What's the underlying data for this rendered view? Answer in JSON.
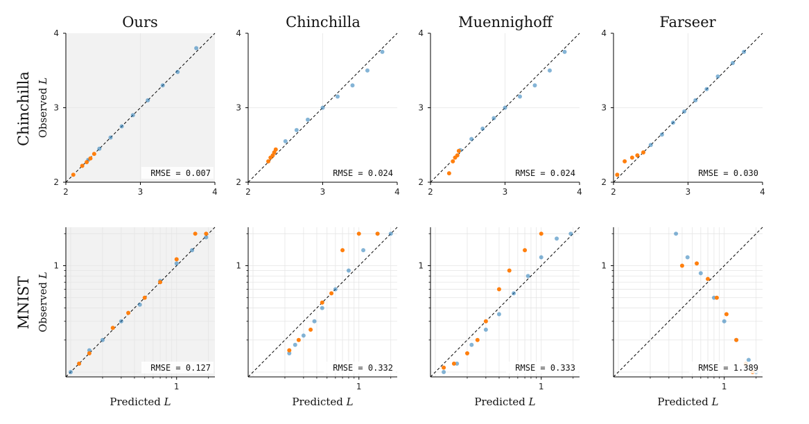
{
  "figure": {
    "column_titles": [
      "Ours",
      "Chinchilla",
      "Muennighoff",
      "Farseer"
    ],
    "row_labels": [
      "Chinchilla",
      "MNIST"
    ],
    "xlabel_prefix": "Predicted ",
    "ylabel_prefix": "Observed ",
    "axis_var": "L"
  },
  "colors": {
    "fit_points": "#1f77b4",
    "holdout_points": "#ff7f0e",
    "reference_line": "#000000",
    "highlight_background": "#f2f2f2",
    "grid": "#e5e5e5"
  },
  "chart_data": [
    {
      "type": "scatter",
      "row": "Chinchilla",
      "model": "Ours",
      "highlighted": true,
      "xlim": [
        2,
        4
      ],
      "ylim": [
        2,
        4
      ],
      "xticks": [
        "2",
        "3",
        "4"
      ],
      "yticks": [
        "2",
        "3",
        "4"
      ],
      "rmse_label": "RMSE = 0.007",
      "fit_x": [
        2.3,
        2.45,
        2.6,
        2.75,
        2.9,
        3.1,
        3.3,
        3.5,
        3.75
      ],
      "fit_y": [
        2.3,
        2.45,
        2.6,
        2.75,
        2.9,
        3.1,
        3.3,
        3.48,
        3.8
      ],
      "holdout_x": [
        2.1,
        2.22,
        2.28,
        2.33,
        2.38
      ],
      "holdout_y": [
        2.1,
        2.22,
        2.27,
        2.32,
        2.38
      ]
    },
    {
      "type": "scatter",
      "row": "Chinchilla",
      "model": "Chinchilla",
      "highlighted": false,
      "xlim": [
        2,
        4
      ],
      "ylim": [
        2,
        4
      ],
      "xticks": [
        "2",
        "3",
        "4"
      ],
      "yticks": [
        "2",
        "3",
        "4"
      ],
      "rmse_label": "RMSE = 0.024",
      "fit_x": [
        2.35,
        2.5,
        2.65,
        2.8,
        3.0,
        3.2,
        3.4,
        3.6,
        3.8
      ],
      "fit_y": [
        2.4,
        2.55,
        2.7,
        2.84,
        3.0,
        3.15,
        3.3,
        3.5,
        3.75
      ],
      "holdout_x": [
        2.27,
        2.3,
        2.33,
        2.35,
        2.37
      ],
      "holdout_y": [
        2.28,
        2.33,
        2.36,
        2.4,
        2.44
      ]
    },
    {
      "type": "scatter",
      "row": "Chinchilla",
      "model": "Muennighoff",
      "highlighted": false,
      "xlim": [
        2,
        4
      ],
      "ylim": [
        2,
        4
      ],
      "xticks": [
        "2",
        "3",
        "4"
      ],
      "yticks": [
        "2",
        "3",
        "4"
      ],
      "rmse_label": "RMSE = 0.024",
      "fit_x": [
        2.4,
        2.55,
        2.7,
        2.85,
        3.0,
        3.2,
        3.4,
        3.6,
        3.8
      ],
      "fit_y": [
        2.43,
        2.58,
        2.72,
        2.86,
        3.0,
        3.15,
        3.3,
        3.5,
        3.75
      ],
      "holdout_x": [
        2.25,
        2.3,
        2.33,
        2.36,
        2.38
      ],
      "holdout_y": [
        2.12,
        2.28,
        2.33,
        2.36,
        2.42
      ]
    },
    {
      "type": "scatter",
      "row": "Chinchilla",
      "model": "Farseer",
      "highlighted": false,
      "xlim": [
        2,
        4
      ],
      "ylim": [
        2,
        4
      ],
      "xticks": [
        "2",
        "3",
        "4"
      ],
      "yticks": [
        "2",
        "3",
        "4"
      ],
      "rmse_label": "RMSE = 0.030",
      "fit_x": [
        2.5,
        2.65,
        2.8,
        2.95,
        3.1,
        3.25,
        3.4,
        3.6,
        3.75
      ],
      "fit_y": [
        2.5,
        2.64,
        2.8,
        2.95,
        3.1,
        3.25,
        3.42,
        3.6,
        3.75
      ],
      "holdout_x": [
        2.05,
        2.15,
        2.25,
        2.32,
        2.4
      ],
      "holdout_y": [
        2.1,
        2.28,
        2.33,
        2.36,
        2.4
      ]
    },
    {
      "type": "scatter",
      "row": "MNIST",
      "model": "Ours",
      "highlighted": true,
      "xscale": "log",
      "yscale": "log",
      "xticks": [
        "1"
      ],
      "yticks": [
        "1"
      ],
      "rmse_label": "RMSE = 0.127",
      "fit_x": [
        0.1,
        0.12,
        0.15,
        0.2,
        0.3,
        0.45,
        0.7,
        1.0,
        1.4,
        1.9
      ],
      "fit_y": [
        0.1,
        0.12,
        0.16,
        0.2,
        0.3,
        0.43,
        0.72,
        1.05,
        1.4,
        1.85
      ],
      "holdout_x": [
        0.12,
        0.15,
        0.25,
        0.35,
        0.5,
        0.7,
        1.0,
        1.5,
        1.9
      ],
      "holdout_y": [
        0.12,
        0.15,
        0.26,
        0.36,
        0.5,
        0.7,
        1.15,
        2.0,
        2.0
      ]
    },
    {
      "type": "scatter",
      "row": "MNIST",
      "model": "Chinchilla",
      "highlighted": false,
      "xscale": "log",
      "yscale": "log",
      "xticks": [
        "1"
      ],
      "yticks": [
        "1"
      ],
      "rmse_label": "RMSE = 0.332",
      "fit_x": [
        0.22,
        0.25,
        0.3,
        0.38,
        0.45,
        0.6,
        0.8,
        1.1,
        1.5,
        2.0
      ],
      "fit_y": [
        0.15,
        0.18,
        0.22,
        0.3,
        0.4,
        0.6,
        0.9,
        1.4,
        2.0,
        2.0
      ],
      "holdout_x": [
        0.22,
        0.27,
        0.35,
        0.45,
        0.55,
        0.7,
        1.0,
        1.5
      ],
      "holdout_y": [
        0.16,
        0.2,
        0.25,
        0.45,
        0.55,
        1.4,
        2.0,
        2.0
      ]
    },
    {
      "type": "scatter",
      "row": "MNIST",
      "model": "Muennighoff",
      "highlighted": false,
      "xscale": "log",
      "yscale": "log",
      "xticks": [
        "1"
      ],
      "yticks": [
        "1"
      ],
      "rmse_label": "RMSE = 0.333",
      "fit_x": [
        0.12,
        0.16,
        0.22,
        0.3,
        0.4,
        0.55,
        0.75,
        1.0,
        1.4,
        1.9
      ],
      "fit_y": [
        0.1,
        0.12,
        0.18,
        0.25,
        0.35,
        0.55,
        0.8,
        1.2,
        1.8,
        2.0
      ],
      "holdout_x": [
        0.12,
        0.15,
        0.2,
        0.25,
        0.3,
        0.4,
        0.5,
        0.7,
        1.0
      ],
      "holdout_y": [
        0.11,
        0.12,
        0.15,
        0.2,
        0.3,
        0.6,
        0.9,
        1.4,
        2.0
      ]
    },
    {
      "type": "scatter",
      "row": "MNIST",
      "model": "Farseer",
      "highlighted": false,
      "xscale": "log",
      "yscale": "log",
      "xticks": [
        "1"
      ],
      "yticks": [
        "1"
      ],
      "rmse_label": "RMSE = 1.389",
      "fit_x": [
        0.35,
        0.45,
        0.6,
        0.8,
        1.0,
        1.3,
        1.7,
        2.0
      ],
      "fit_y": [
        2.0,
        1.2,
        0.85,
        0.5,
        0.3,
        0.2,
        0.13,
        0.1
      ],
      "holdout_x": [
        0.4,
        0.55,
        0.7,
        0.85,
        1.05,
        1.3,
        1.6,
        1.85
      ],
      "holdout_y": [
        1.0,
        1.05,
        0.75,
        0.5,
        0.35,
        0.2,
        0.12,
        0.1
      ]
    }
  ]
}
